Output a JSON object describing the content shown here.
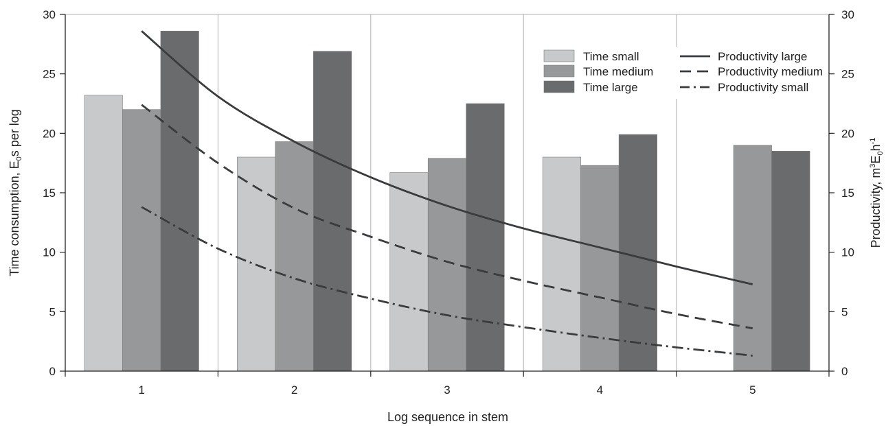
{
  "chart_data": {
    "type": "bar",
    "categories": [
      "1",
      "2",
      "3",
      "4",
      "5"
    ],
    "xlabel": "Log sequence in stem",
    "ylabel": {
      "prefix": "Time consumption, E",
      "sub": "0",
      "suffix": "s per log"
    },
    "y2label": {
      "prefix": "Productivity,  m",
      "sup1": "3",
      "mid": "E",
      "sub": "0",
      "mid2": "h",
      "sup2": "-1"
    },
    "ylim": [
      0,
      30
    ],
    "y2lim": [
      0,
      30
    ],
    "yticks": [
      0,
      5,
      10,
      15,
      20,
      25,
      30
    ],
    "y2ticks": [
      0,
      5,
      10,
      15,
      20,
      25,
      30
    ],
    "grid": "vertical",
    "legend_position": "top-right",
    "bar_series": [
      {
        "name": "Time small",
        "color": "#c8c9cb",
        "values": [
          23.2,
          18.0,
          16.7,
          18.0,
          null
        ]
      },
      {
        "name": "Time medium",
        "color": "#97989a",
        "values": [
          22.0,
          19.3,
          17.9,
          17.3,
          19.0
        ]
      },
      {
        "name": "Time large",
        "color": "#6a6b6d",
        "values": [
          28.6,
          26.9,
          22.5,
          19.9,
          18.5
        ]
      }
    ],
    "line_series": [
      {
        "name": "Productivity large",
        "color": "#3a3b3d",
        "dash": "solid",
        "x": [
          1,
          1.5,
          2,
          2.5,
          3,
          3.5,
          4,
          4.5,
          5
        ],
        "y": [
          28.6,
          23.1,
          19.3,
          16.3,
          13.9,
          12.0,
          10.4,
          8.8,
          7.3
        ]
      },
      {
        "name": "Productivity medium",
        "color": "#3a3b3d",
        "dash": "dashed",
        "x": [
          1,
          1.5,
          2,
          2.5,
          3,
          3.5,
          4,
          4.5,
          5
        ],
        "y": [
          22.4,
          17.5,
          13.7,
          11.3,
          9.2,
          7.6,
          6.2,
          4.8,
          3.6
        ]
      },
      {
        "name": "Productivity small",
        "color": "#3a3b3d",
        "dash": "dashdot",
        "x": [
          1,
          1.5,
          2,
          2.5,
          3,
          3.5,
          4,
          4.5,
          5
        ],
        "y": [
          13.8,
          10.3,
          7.8,
          6.1,
          4.7,
          3.7,
          2.8,
          2.0,
          1.3
        ]
      }
    ]
  }
}
